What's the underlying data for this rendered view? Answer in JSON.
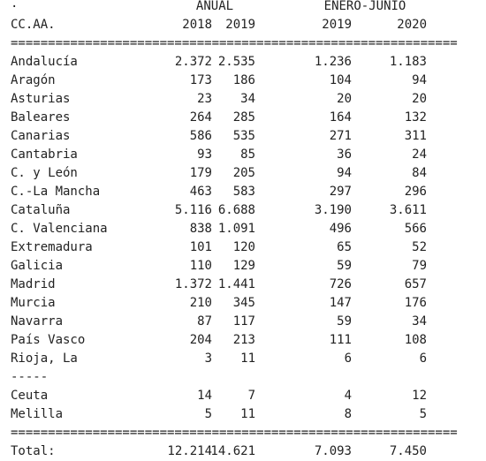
{
  "header": {
    "dot": ".",
    "group1": "ANUAL",
    "group2": "ENERO-JUNIO",
    "label": "CC.AA.",
    "columns": [
      "2018",
      "2019",
      "2019",
      "2020"
    ]
  },
  "separator_top": "============================================================",
  "rows": [
    [
      "Andalucía",
      "2.372",
      "2.535",
      "1.236",
      "1.183"
    ],
    [
      "Aragón",
      "173",
      "186",
      "104",
      "94"
    ],
    [
      "Asturias",
      "23",
      "34",
      "20",
      "20"
    ],
    [
      "Baleares",
      "264",
      "285",
      "164",
      "132"
    ],
    [
      "Canarias",
      "586",
      "535",
      "271",
      "311"
    ],
    [
      "Cantabria",
      "93",
      "85",
      "36",
      "24"
    ],
    [
      "C. y León",
      "179",
      "205",
      "94",
      "84"
    ],
    [
      "C.-La Mancha",
      "463",
      "583",
      "297",
      "296"
    ],
    [
      "Cataluña",
      "5.116",
      "6.688",
      "3.190",
      "3.611"
    ],
    [
      "C. Valenciana",
      "838",
      "1.091",
      "496",
      "566"
    ],
    [
      "Extremadura",
      "101",
      "120",
      "65",
      "52"
    ],
    [
      "Galicia",
      "110",
      "129",
      "59",
      "79"
    ],
    [
      "Madrid",
      "1.372",
      "1.441",
      "726",
      "657"
    ],
    [
      "Murcia",
      "210",
      "345",
      "147",
      "176"
    ],
    [
      "Navarra",
      "87",
      "117",
      "59",
      "34"
    ],
    [
      "País Vasco",
      "204",
      "213",
      "111",
      "108"
    ],
    [
      "Rioja, La",
      "3",
      "11",
      "6",
      "6"
    ]
  ],
  "divider": "-----",
  "rows2": [
    [
      "Ceuta",
      "14",
      "7",
      "4",
      "12"
    ],
    [
      "Melilla",
      "5",
      "11",
      "8",
      "5"
    ]
  ],
  "separator_bottom": "============================================================",
  "total": [
    "Total:",
    "12.214",
    "14.621",
    "7.093",
    "7.450"
  ]
}
